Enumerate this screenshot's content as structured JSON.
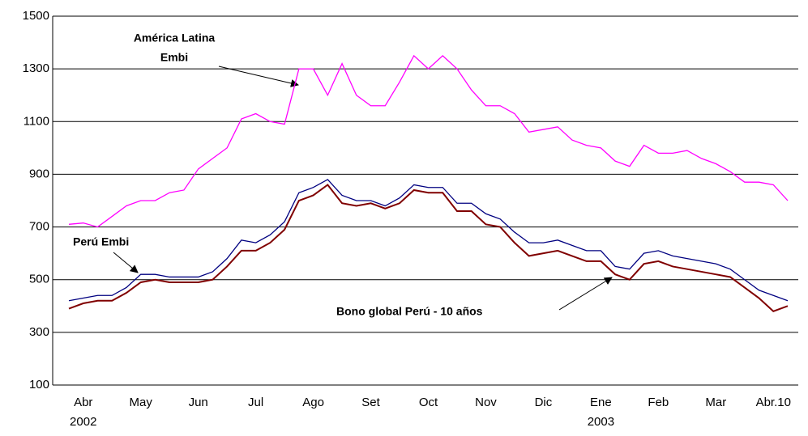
{
  "chart_data": {
    "type": "line",
    "categories": [
      null,
      "Abr",
      null,
      null,
      null,
      "May",
      null,
      null,
      null,
      "Jun",
      null,
      null,
      null,
      "Jul",
      null,
      null,
      null,
      "Ago",
      null,
      null,
      null,
      "Set",
      null,
      null,
      null,
      "Oct",
      null,
      null,
      null,
      "Nov",
      null,
      null,
      null,
      "Dic",
      null,
      null,
      null,
      "Ene",
      null,
      null,
      null,
      "Feb",
      null,
      null,
      null,
      "Mar",
      null,
      null,
      null,
      "Abr.10",
      null
    ],
    "year_labels": [
      null,
      "2002",
      null,
      null,
      null,
      null,
      null,
      null,
      null,
      null,
      null,
      null,
      null,
      null,
      null,
      null,
      null,
      null,
      null,
      null,
      null,
      null,
      null,
      null,
      null,
      null,
      null,
      null,
      null,
      null,
      null,
      null,
      null,
      null,
      null,
      null,
      null,
      "2003",
      null,
      null,
      null,
      null,
      null,
      null,
      null,
      null,
      null,
      null,
      null,
      null,
      null
    ],
    "series": [
      {
        "name": "América Latina Embi",
        "color": "#ff00ff",
        "values": [
          710,
          715,
          700,
          740,
          780,
          800,
          800,
          830,
          840,
          920,
          960,
          1000,
          1110,
          1130,
          1100,
          1090,
          1300,
          1300,
          1200,
          1320,
          1200,
          1160,
          1160,
          1250,
          1350,
          1300,
          1350,
          1300,
          1220,
          1160,
          1160,
          1130,
          1060,
          1070,
          1080,
          1030,
          1010,
          1000,
          950,
          930,
          1010,
          980,
          980,
          990,
          960,
          940,
          910,
          870,
          870,
          860,
          800
        ]
      },
      {
        "name": "Perú Embi",
        "color": "#000080",
        "values": [
          420,
          430,
          440,
          440,
          470,
          520,
          520,
          510,
          510,
          510,
          530,
          580,
          650,
          640,
          670,
          720,
          830,
          850,
          880,
          820,
          800,
          800,
          780,
          810,
          860,
          850,
          850,
          790,
          790,
          750,
          730,
          680,
          640,
          640,
          650,
          630,
          610,
          610,
          550,
          540,
          600,
          610,
          590,
          580,
          570,
          560,
          540,
          500,
          460,
          440,
          420
        ]
      },
      {
        "name": "Bono global Perú  - 10 años",
        "color": "#800000",
        "values": [
          390,
          410,
          420,
          420,
          450,
          490,
          500,
          490,
          490,
          490,
          500,
          550,
          610,
          610,
          640,
          690,
          800,
          820,
          860,
          790,
          780,
          790,
          770,
          790,
          840,
          830,
          830,
          760,
          760,
          710,
          700,
          640,
          590,
          600,
          610,
          590,
          570,
          570,
          520,
          500,
          560,
          570,
          550,
          540,
          530,
          520,
          510,
          470,
          430,
          380,
          400
        ]
      }
    ],
    "annotations": [
      "América Latina",
      "Embi",
      "Perú  Embi",
      "Bono global Perú  - 10 años"
    ],
    "ylim": [
      100,
      1500
    ],
    "yticks": [
      100,
      300,
      500,
      700,
      900,
      1100,
      1300,
      1500
    ],
    "grid": true
  }
}
